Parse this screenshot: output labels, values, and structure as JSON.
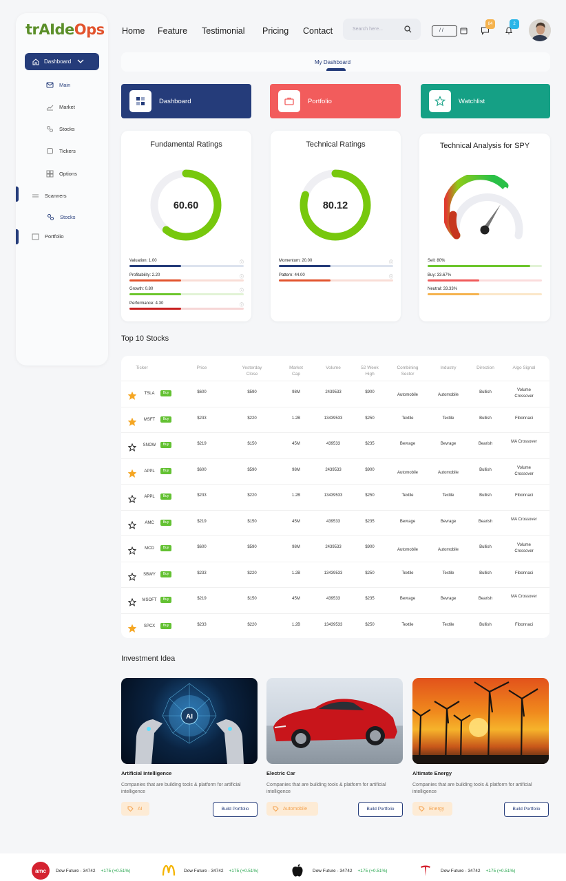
{
  "app": {
    "logo_part1": "trAIde",
    "logo_part2": "Ops"
  },
  "nav": {
    "items": [
      "Home",
      "Feature",
      "Testimonial",
      "Pricing",
      "Contact"
    ]
  },
  "search": {
    "placeholder": "Search here..."
  },
  "date": {
    "value": "/ /"
  },
  "notifications": {
    "messages": "84",
    "alerts": "2"
  },
  "sidebar": {
    "dashboard": "Dashboard",
    "items": [
      "Main",
      "Market",
      "Stocks",
      "Tickers",
      "Options"
    ],
    "scanners": "Scanners",
    "scanner_stocks": "Stocks",
    "portfolio": "Portfolio"
  },
  "tab": {
    "label": "My Dashboard"
  },
  "categories": [
    {
      "label": "Dashboard",
      "color": "#253c7a"
    },
    {
      "label": "Portfolio",
      "color": "#f25c5c"
    },
    {
      "label": "Watchlist",
      "color": "#15a085"
    }
  ],
  "fundamental": {
    "title": "Fundamental Ratings",
    "value": "60.60",
    "fraction": 0.606,
    "metrics": [
      {
        "label": "Valuation: 1.00",
        "fill": 0.45,
        "color": "#253c7a",
        "track": "#dde3ee"
      },
      {
        "label": "Profitability: 2.20",
        "fill": 0.45,
        "color": "#e2532d",
        "track": "#f9ddd6"
      },
      {
        "label": "Growth: 0.80",
        "fill": 0.45,
        "color": "#6dc62d",
        "track": "#e2f3d6"
      },
      {
        "label": "Performance: 4.30",
        "fill": 0.45,
        "color": "#c81e1e",
        "track": "#f6d6d6"
      }
    ]
  },
  "technical": {
    "title": "Technical Ratings",
    "value": "80.12",
    "fraction": 0.8012,
    "metrics": [
      {
        "label": "Momentum: 20.00",
        "fill": 0.45,
        "color": "#253c7a",
        "track": "#dde3ee"
      },
      {
        "label": "Pattern: 44.00",
        "fill": 0.45,
        "color": "#e2532d",
        "track": "#f9ddd6"
      }
    ]
  },
  "spy": {
    "title": "Technical Analysis for SPY",
    "metrics": [
      {
        "label": "Sell: 80%",
        "fill": 0.9,
        "color": "#6dc62d",
        "track": "#e2f3d6"
      },
      {
        "label": "Buy: 33.67%",
        "fill": 0.45,
        "color": "#f05a5a",
        "track": "#fbdcdc"
      },
      {
        "label": "Neutral: 33.33%",
        "fill": 0.45,
        "color": "#f5b34f",
        "track": "#fbe7c9"
      }
    ]
  },
  "top10": {
    "title": "Top 10 Stocks",
    "headers": [
      "Ticker",
      "Price",
      "Yesterday Close",
      "Market Cap",
      "Volume",
      "52 Week High",
      "Combining Sector",
      "Industry",
      "Direction",
      "Algo Signal"
    ],
    "buy_label": "Buy",
    "rows": [
      {
        "star": true,
        "ticker": "TSLA",
        "price": "$600",
        "close": "$590",
        "cap": "98M",
        "volume": "2439533",
        "high": "$900",
        "sector": "Automobile",
        "industry": "Automobile",
        "direction": "Bullish",
        "signal": "Volume Crossover"
      },
      {
        "star": true,
        "ticker": "MSFT",
        "price": "$233",
        "close": "$220",
        "cap": "1.2B",
        "volume": "13439533",
        "high": "$250",
        "sector": "Textile",
        "industry": "Textile",
        "direction": "Bullish",
        "signal": "Fibonnaci"
      },
      {
        "star": false,
        "ticker": "SNOW",
        "price": "$219",
        "close": "$150",
        "cap": "45M",
        "volume": "439533",
        "high": "$235",
        "sector": "Bevrage",
        "industry": "Bevrage",
        "direction": "Bearish",
        "signal": "MA Crossover"
      },
      {
        "star": true,
        "ticker": "APPL",
        "price": "$600",
        "close": "$590",
        "cap": "98M",
        "volume": "2439533",
        "high": "$900",
        "sector": "Automobile",
        "industry": "Automobile",
        "direction": "Bullish",
        "signal": "Volume Crossover"
      },
      {
        "star": false,
        "ticker": "APPL",
        "price": "$233",
        "close": "$220",
        "cap": "1.2B",
        "volume": "13439533",
        "high": "$250",
        "sector": "Textile",
        "industry": "Textile",
        "direction": "Bullish",
        "signal": "Fibonnaci"
      },
      {
        "star": false,
        "ticker": "AMC",
        "price": "$219",
        "close": "$150",
        "cap": "45M",
        "volume": "439533",
        "high": "$235",
        "sector": "Bevrage",
        "industry": "Bevrage",
        "direction": "Bearish",
        "signal": "MA Crossover"
      },
      {
        "star": false,
        "ticker": "MCD",
        "price": "$600",
        "close": "$590",
        "cap": "98M",
        "volume": "2439533",
        "high": "$900",
        "sector": "Automobile",
        "industry": "Automobile",
        "direction": "Bullish",
        "signal": "Volume Crossover"
      },
      {
        "star": false,
        "ticker": "SBWY",
        "price": "$233",
        "close": "$220",
        "cap": "1.2B",
        "volume": "13439533",
        "high": "$250",
        "sector": "Textile",
        "industry": "Textile",
        "direction": "Bullish",
        "signal": "Fibonnaci"
      },
      {
        "star": false,
        "ticker": "MSOFT",
        "price": "$219",
        "close": "$150",
        "cap": "45M",
        "volume": "439533",
        "high": "$235",
        "sector": "Bevrage",
        "industry": "Bevrage",
        "direction": "Bearish",
        "signal": "MA Crossover"
      },
      {
        "star": true,
        "ticker": "SPCX",
        "price": "$233",
        "close": "$220",
        "cap": "1.2B",
        "volume": "13439533",
        "high": "$250",
        "sector": "Textile",
        "industry": "Textile",
        "direction": "Bullish",
        "signal": "Fibonnaci"
      }
    ]
  },
  "ideas": {
    "title": "Investment Idea",
    "button": "Build Portfolio",
    "items": [
      {
        "title": "Artificial Intelligence",
        "desc": "Companies that are building tools & platform for artificial intelligence",
        "tag": "AI",
        "image_text": "AI"
      },
      {
        "title": "Electric Car",
        "desc": "Companies that are building tools & platform for artificial intelligence",
        "tag": "Automobile"
      },
      {
        "title": "Altimate Energy",
        "desc": "Companies that are building tools & platform for artificial intelligence",
        "tag": "Energy"
      }
    ]
  },
  "ticker": {
    "logo_amc": "amc",
    "items": [
      {
        "text": "Dow Future - 34742",
        "change": "+175 (+0.51%)",
        "icon": "amc-logo"
      },
      {
        "text": "Dow Future - 34742",
        "change": "+175 (+0.51%)",
        "icon": "mcdonalds-logo"
      },
      {
        "text": "Dow Future - 34742",
        "change": "+175 (+0.51%)",
        "icon": "apple-logo"
      },
      {
        "text": "Dow Future - 34742",
        "change": "+175 (+0.51%)",
        "icon": "tesla-logo"
      }
    ]
  }
}
